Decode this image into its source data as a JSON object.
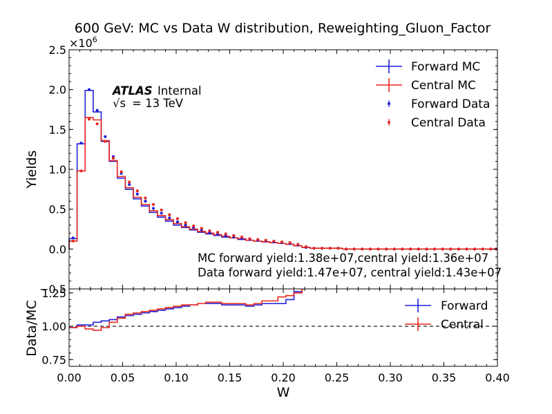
{
  "chart_data": [
    {
      "type": "line",
      "title": "600 GeV: MC vs Data W distribution, Reweighting_Gluon_Factor",
      "ylabel": "Yields",
      "xlim": [
        0.0,
        0.4
      ],
      "ylim": [
        -0.5,
        2.5
      ],
      "y_multiplier_label": "×10",
      "y_multiplier_exp": "6",
      "x_ticks": [
        "0.00",
        "0.05",
        "0.10",
        "0.15",
        "0.20",
        "0.25",
        "0.30",
        "0.35",
        "0.40"
      ],
      "y_ticks": [
        "−0.5",
        "0.0",
        "0.5",
        "1.0",
        "1.5",
        "2.0",
        "2.5"
      ],
      "y_tick_values": [
        -0.5,
        0.0,
        0.5,
        1.0,
        1.5,
        2.0,
        2.5
      ],
      "legend_position": "top-right",
      "atlas_label": "ATLAS",
      "atlas_suffix": "Internal",
      "energy_label": "= 13 TeV",
      "energy_sqrt": "√s",
      "annotations": [
        "MC forward yield:1.38e+07,central yield:1.36e+07",
        "Data forward yield:1.47e+07, central yield:1.43e+07"
      ],
      "bin_edges": [
        0.0,
        0.0075,
        0.015,
        0.0225,
        0.03,
        0.0375,
        0.045,
        0.0525,
        0.06,
        0.0675,
        0.075,
        0.0825,
        0.09,
        0.0975,
        0.105,
        0.1125,
        0.12,
        0.1275,
        0.135,
        0.1425,
        0.15,
        0.1575,
        0.165,
        0.1725,
        0.18,
        0.1875,
        0.195,
        0.2025,
        0.21,
        0.2175,
        0.225,
        0.2325,
        0.24,
        0.2475,
        0.255,
        0.2625,
        0.27,
        0.2775,
        0.285,
        0.2925,
        0.3,
        0.3075,
        0.315,
        0.3225,
        0.33,
        0.3375,
        0.345,
        0.3525,
        0.36,
        0.3675,
        0.375,
        0.3825,
        0.39,
        0.3975,
        0.4
      ],
      "series": [
        {
          "name": "Forward MC",
          "style": "step",
          "color": "#1f1fd9",
          "values": [
            0.13,
            1.32,
            1.99,
            1.72,
            1.35,
            1.1,
            0.89,
            0.75,
            0.63,
            0.54,
            0.46,
            0.4,
            0.35,
            0.3,
            0.27,
            0.24,
            0.21,
            0.19,
            0.17,
            0.15,
            0.14,
            0.12,
            0.11,
            0.1,
            0.09,
            0.08,
            0.07,
            0.06,
            0.04,
            0.02,
            0.01,
            0.01,
            0.01,
            0.01,
            0.0,
            0.0,
            0.0,
            0.0,
            0.0,
            0.0,
            0.0,
            0.0,
            0.0,
            0.0,
            0.0,
            0.0,
            0.0,
            0.0,
            0.0,
            0.0,
            0.0,
            0.0,
            0.0,
            0.0
          ]
        },
        {
          "name": "Central MC",
          "style": "step",
          "color": "#e8261e",
          "values": [
            0.1,
            0.98,
            1.65,
            1.62,
            1.36,
            1.11,
            0.91,
            0.77,
            0.65,
            0.56,
            0.48,
            0.42,
            0.37,
            0.32,
            0.28,
            0.25,
            0.22,
            0.2,
            0.18,
            0.16,
            0.14,
            0.13,
            0.11,
            0.1,
            0.09,
            0.08,
            0.07,
            0.06,
            0.04,
            0.02,
            0.01,
            0.01,
            0.01,
            0.01,
            0.0,
            0.0,
            0.0,
            0.0,
            0.0,
            0.0,
            0.0,
            0.0,
            0.0,
            0.0,
            0.0,
            0.0,
            0.0,
            0.0,
            0.0,
            0.0,
            0.0,
            0.0,
            0.0,
            0.0
          ]
        },
        {
          "name": "Forward Data",
          "style": "points",
          "color": "#1f1fd9",
          "values": [
            0.14,
            1.33,
            2.0,
            1.74,
            1.41,
            1.16,
            0.95,
            0.81,
            0.69,
            0.6,
            0.51,
            0.45,
            0.39,
            0.34,
            0.3,
            0.27,
            0.24,
            0.21,
            0.19,
            0.17,
            0.15,
            0.13,
            0.12,
            0.11,
            0.1,
            0.09,
            0.08,
            0.07,
            0.05,
            0.02,
            0.01,
            0.01,
            0.01,
            0.01,
            0.0,
            0.0,
            0.0,
            0.0,
            0.0,
            0.0,
            0.0,
            0.0,
            0.0,
            0.0,
            0.0,
            0.0,
            0.0,
            0.0,
            0.0,
            0.0,
            0.0,
            0.0,
            0.0,
            0.0
          ]
        },
        {
          "name": "Central Data",
          "style": "points",
          "color": "#e8261e",
          "values": [
            0.1,
            0.98,
            1.63,
            1.57,
            1.35,
            1.14,
            0.97,
            0.84,
            0.73,
            0.64,
            0.56,
            0.49,
            0.43,
            0.38,
            0.33,
            0.29,
            0.26,
            0.23,
            0.21,
            0.19,
            0.17,
            0.15,
            0.13,
            0.12,
            0.11,
            0.1,
            0.09,
            0.08,
            0.06,
            0.03,
            0.01,
            0.01,
            0.01,
            0.01,
            0.0,
            0.0,
            0.0,
            0.0,
            0.0,
            0.0,
            0.0,
            0.0,
            0.0,
            0.0,
            0.0,
            0.0,
            0.0,
            0.0,
            0.0,
            0.0,
            0.0,
            0.0,
            0.0,
            0.0
          ]
        }
      ]
    },
    {
      "type": "line",
      "xlabel": "W",
      "ylabel": "Data/MC",
      "xlim": [
        0.0,
        0.4
      ],
      "ylim": [
        0.7,
        1.28
      ],
      "x_ticks": [
        "0.00",
        "0.05",
        "0.10",
        "0.15",
        "0.20",
        "0.25",
        "0.30",
        "0.35",
        "0.40"
      ],
      "y_ticks": [
        "0.75",
        "1.00",
        "1.25"
      ],
      "y_tick_values": [
        0.75,
        1.0,
        1.25
      ],
      "reference_line": 1.0,
      "legend_position": "top-right",
      "ratio_edges": [
        0.0,
        0.0075,
        0.015,
        0.0225,
        0.03,
        0.0375,
        0.045,
        0.0525,
        0.06,
        0.0675,
        0.075,
        0.0825,
        0.09,
        0.0975,
        0.105,
        0.1125,
        0.12,
        0.1275,
        0.135,
        0.1425,
        0.15,
        0.1575,
        0.165,
        0.1725,
        0.18,
        0.1875,
        0.195,
        0.2025,
        0.21,
        0.2175,
        0.225
      ],
      "series": [
        {
          "name": "Forward",
          "style": "step",
          "color": "#1f1fd9",
          "values": [
            0.99,
            1.01,
            1.01,
            1.03,
            1.04,
            1.05,
            1.07,
            1.08,
            1.09,
            1.1,
            1.11,
            1.12,
            1.13,
            1.14,
            1.15,
            1.16,
            1.17,
            1.17,
            1.17,
            1.16,
            1.16,
            1.16,
            1.15,
            1.16,
            1.17,
            1.17,
            1.17,
            1.2,
            1.26,
            1.3
          ]
        },
        {
          "name": "Central",
          "style": "step",
          "color": "#e8261e",
          "values": [
            0.99,
            1.0,
            0.98,
            0.97,
            0.99,
            1.03,
            1.06,
            1.09,
            1.1,
            1.11,
            1.12,
            1.13,
            1.14,
            1.15,
            1.16,
            1.16,
            1.17,
            1.18,
            1.18,
            1.17,
            1.17,
            1.17,
            1.16,
            1.17,
            1.19,
            1.19,
            1.22,
            1.23,
            1.25,
            1.31
          ]
        }
      ]
    }
  ]
}
